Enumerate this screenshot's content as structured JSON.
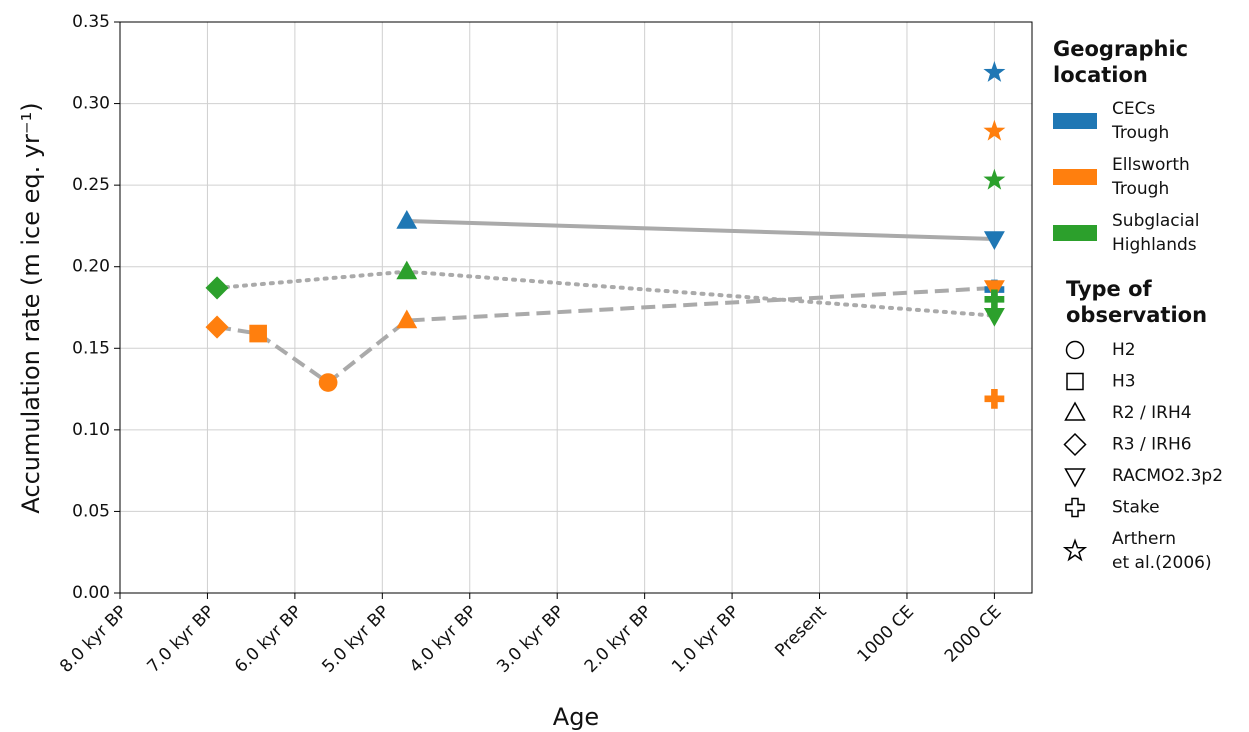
{
  "chart_data": {
    "type": "scatter",
    "x_label": "Age",
    "y_label": "Accumulation rate (m ice eq. yr⁻¹)",
    "xlim": [
      -8,
      2.43
    ],
    "ylim": [
      0,
      0.35
    ],
    "xticks": [
      {
        "value": -8,
        "label": "8.0 kyr BP"
      },
      {
        "value": -7,
        "label": "7.0 kyr BP"
      },
      {
        "value": -6,
        "label": "6.0 kyr BP"
      },
      {
        "value": -5,
        "label": "5.0 kyr BP"
      },
      {
        "value": -4,
        "label": "4.0 kyr BP"
      },
      {
        "value": -3,
        "label": "3.0 kyr BP"
      },
      {
        "value": -2,
        "label": "2.0 kyr BP"
      },
      {
        "value": -1,
        "label": "1.0 kyr BP"
      },
      {
        "value": 0,
        "label": "Present"
      },
      {
        "value": 1,
        "label": "1000 CE"
      },
      {
        "value": 2,
        "label": "2000 CE"
      }
    ],
    "yticks": [
      {
        "value": 0,
        "label": "0.00"
      },
      {
        "value": 0.05,
        "label": "0.05"
      },
      {
        "value": 0.1,
        "label": "0.10"
      },
      {
        "value": 0.15,
        "label": "0.15"
      },
      {
        "value": 0.2,
        "label": "0.20"
      },
      {
        "value": 0.25,
        "label": "0.25"
      },
      {
        "value": 0.3,
        "label": "0.30"
      },
      {
        "value": 0.35,
        "label": "0.35"
      }
    ],
    "grid": true,
    "lines": [
      {
        "style": "solid",
        "color": "#aaaaaa",
        "x": [
          -4.72,
          2
        ],
        "values": [
          0.228,
          0.217
        ]
      },
      {
        "style": "dotted",
        "color": "#aaaaaa",
        "x": [
          -6.89,
          -4.72,
          2
        ],
        "values": [
          0.187,
          0.197,
          0.17
        ]
      },
      {
        "style": "dashed",
        "color": "#aaaaaa",
        "x": [
          -6.89,
          -6.42,
          -5.62,
          -4.72,
          2
        ],
        "values": [
          0.163,
          0.159,
          0.129,
          0.167,
          0.187
        ]
      }
    ],
    "series": [
      {
        "name": [
          "CECs",
          "Trough"
        ],
        "color": "#1f77b4",
        "x": [
          -4.72,
          2,
          2,
          2
        ],
        "values": [
          0.228,
          0.217,
          0.186,
          0.319
        ],
        "markers": [
          "triangle-up",
          "triangle-down",
          "plus",
          "star"
        ]
      },
      {
        "name": [
          "Ellsworth",
          "Trough"
        ],
        "color": "#ff7f0e",
        "x": [
          -6.89,
          -6.42,
          -5.62,
          -4.72,
          2,
          2,
          2
        ],
        "values": [
          0.163,
          0.159,
          0.129,
          0.167,
          0.187,
          0.119,
          0.283
        ],
        "markers": [
          "diamond",
          "square",
          "circle",
          "triangle-up",
          "triangle-down",
          "plus",
          "star"
        ]
      },
      {
        "name": [
          "Subglacial",
          "Highlands"
        ],
        "color": "#2ca02c",
        "x": [
          -6.89,
          -4.72,
          2,
          2,
          2
        ],
        "values": [
          0.187,
          0.197,
          0.17,
          0.18,
          0.253
        ],
        "markers": [
          "diamond",
          "triangle-up",
          "triangle-down",
          "plus",
          "star"
        ]
      }
    ],
    "legend_location_title": [
      "Geographic",
      "location"
    ],
    "legend_type_title": [
      "Type of",
      "observation"
    ],
    "marker_types": [
      {
        "label": [
          "H2"
        ],
        "marker": "circle"
      },
      {
        "label": [
          "H3"
        ],
        "marker": "square"
      },
      {
        "label": [
          "R2 / IRH4"
        ],
        "marker": "triangle-up"
      },
      {
        "label": [
          "R3 / IRH6"
        ],
        "marker": "diamond"
      },
      {
        "label": [
          "RACMO2.3p2"
        ],
        "marker": "triangle-down"
      },
      {
        "label": [
          "Stake"
        ],
        "marker": "plus"
      },
      {
        "label": [
          "Arthern",
          "et al.(2006)"
        ],
        "marker": "star"
      }
    ]
  }
}
